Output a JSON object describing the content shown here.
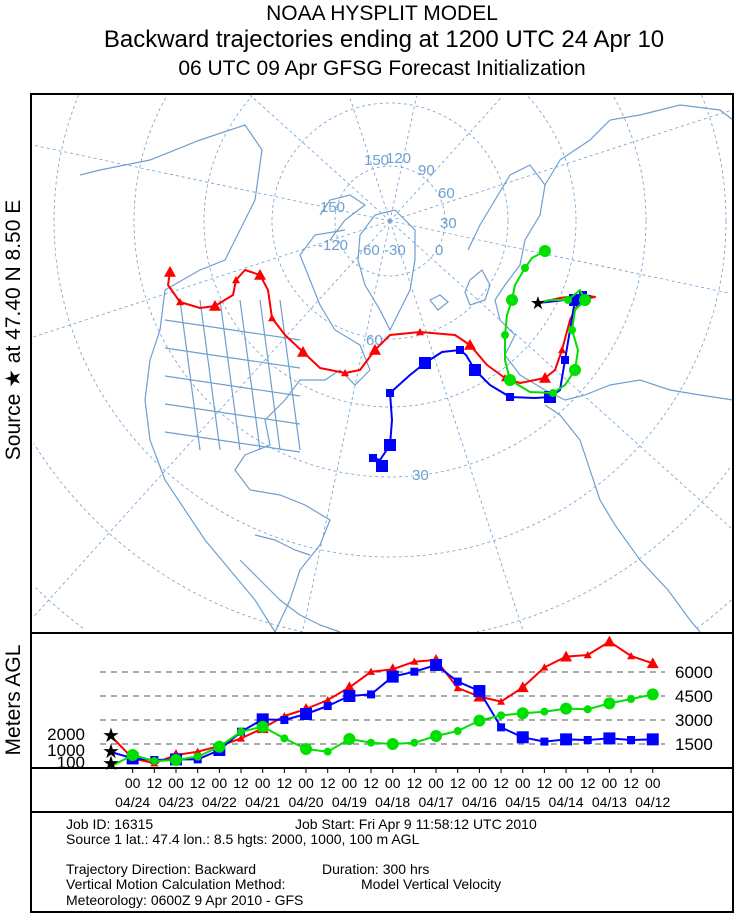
{
  "header": {
    "model": "NOAA HYSPLIT MODEL",
    "title": "Backward trajectories ending at 1200 UTC 24 Apr 10",
    "subtitle": "06 UTC 09 Apr    GFSG  Forecast Initialization"
  },
  "map": {
    "source_label": "Source ★ at   47.40 N    8.50 E",
    "grid_labels": [
      "150",
      "120",
      "90",
      "60",
      "30",
      "0",
      "150",
      "-120",
      "-60",
      "-30",
      "60",
      "30"
    ],
    "colors": {
      "grid": "#6f9fd0",
      "coast": "#6f9fd0"
    }
  },
  "chart_data": {
    "type": "line",
    "ylabel": "Meters AGL",
    "yticks_right": [
      "6000",
      "4500",
      "3000",
      "1500"
    ],
    "start_heights": [
      "2000",
      "1000",
      "100"
    ],
    "x_label_hours": [
      "00",
      "12",
      "00",
      "12",
      "00",
      "12",
      "00",
      "12",
      "00",
      "12",
      "00",
      "12",
      "00",
      "12",
      "00",
      "12",
      "00",
      "12",
      "00",
      "12",
      "00",
      "12",
      "00",
      "12",
      "00"
    ],
    "x_label_dates": [
      "04/24",
      "04/23",
      "04/22",
      "04/21",
      "04/20",
      "04/19",
      "04/18",
      "04/17",
      "04/16",
      "04/15",
      "04/14",
      "04/13",
      "04/12"
    ],
    "hours_back": [
      0,
      12,
      24,
      36,
      48,
      60,
      72,
      84,
      96,
      108,
      120,
      132,
      144,
      156,
      168,
      180,
      192,
      204,
      216,
      228,
      240,
      252,
      264,
      276,
      288,
      300
    ],
    "series": [
      {
        "name": "2000 m",
        "color": "#ff0000",
        "marker": "triangle",
        "values": [
          2000,
          600,
          300,
          810,
          1020,
          1375,
          1850,
          2480,
          3250,
          3690,
          4250,
          5040,
          6020,
          6170,
          6650,
          6750,
          5000,
          4460,
          4150,
          5040,
          6290,
          6960,
          7060,
          7900,
          7000,
          6540
        ]
      },
      {
        "name": "1000 m",
        "color": "#0000ff",
        "marker": "square",
        "values": [
          1000,
          600,
          500,
          540,
          540,
          1125,
          2270,
          3040,
          3000,
          3375,
          3875,
          4500,
          4600,
          5710,
          6020,
          6440,
          5400,
          4810,
          2540,
          1920,
          1650,
          1790,
          1750,
          1850,
          1750,
          1790
        ]
      },
      {
        "name": "100 m",
        "color": "#00e000",
        "marker": "circle",
        "values": [
          100,
          810,
          440,
          500,
          710,
          1330,
          2270,
          2580,
          1850,
          1190,
          1020,
          1810,
          1580,
          1500,
          1580,
          2000,
          2310,
          2960,
          3290,
          3420,
          3520,
          3710,
          3670,
          4040,
          4310,
          4600
        ]
      }
    ]
  },
  "info": {
    "job_id": "Job ID: 16315",
    "job_start": "Job Start: Fri Apr  9 11:58:12 UTC 2010",
    "source": "Source 1 lat.: 47.4  lon.: 8.5  hgts: 2000, 1000, 100 m AGL",
    "direction": "Trajectory Direction: Backward",
    "duration": "Duration: 300 hrs",
    "vertical": "Vertical Motion Calculation Method:",
    "vertical_value": "Model Vertical Velocity",
    "meteorology": "Meteorology: 0600Z  9 Apr 2010 - GFS"
  }
}
